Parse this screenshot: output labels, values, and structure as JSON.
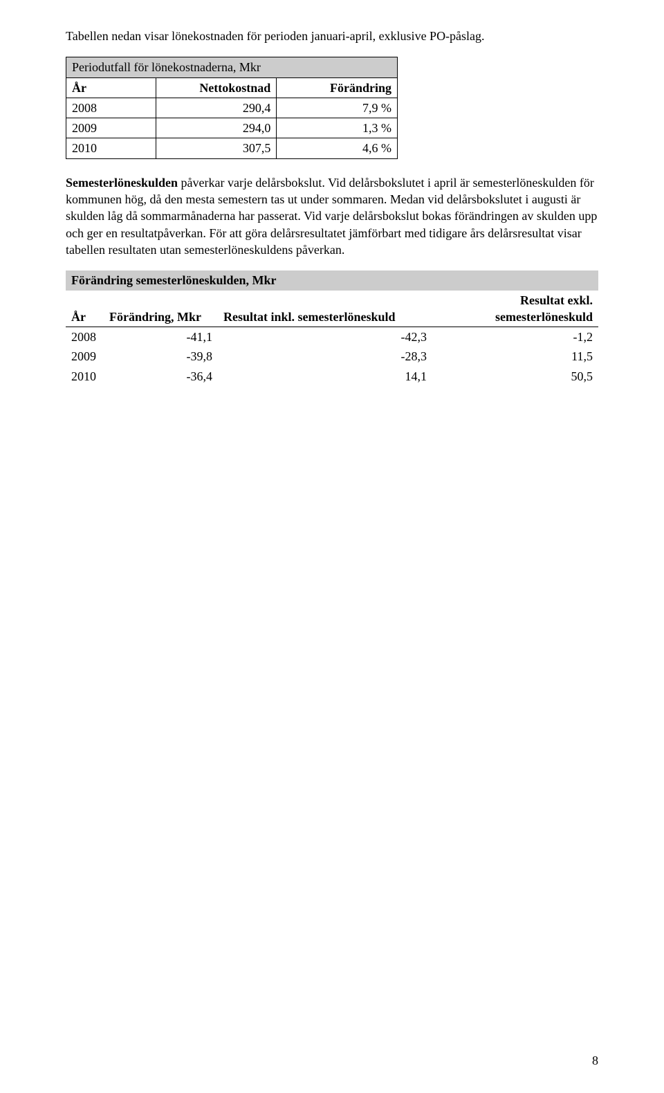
{
  "intro": "Tabellen nedan visar lönekostnaden för perioden januari-april, exklusive PO-påslag.",
  "table1": {
    "title": "Periodutfall för lönekostnaderna, Mkr",
    "col_headers": [
      "År",
      "Nettokostnad",
      "Förändring"
    ],
    "rows": [
      {
        "year": "2008",
        "net": "290,4",
        "chg": "7,9 %"
      },
      {
        "year": "2009",
        "net": "294,0",
        "chg": "1,3 %"
      },
      {
        "year": "2010",
        "net": "307,5",
        "chg": "4,6 %"
      }
    ],
    "header_bg": "#cccccc",
    "border_color": "#000000"
  },
  "para2_bold": "Semesterlöneskulden",
  "para2_rest": " påverkar varje delårsbokslut. Vid delårsbokslutet i april är semesterlöneskulden för kommunen hög, då den mesta semestern tas ut under sommaren. Medan vid delårsbokslutet i augusti är skulden låg då sommarmånaderna har passerat. Vid varje delårsbokslut bokas förändringen av skulden upp och ger en resultatpåverkan. För att göra delårsresultatet jämförbart med tidigare års delårsresultat visar tabellen resultaten utan semesterlöneskuldens påverkan.",
  "table2": {
    "title": "Förändring semesterlöneskulden, Mkr",
    "col_headers": [
      "År",
      "Förändring, Mkr",
      "Resultat inkl. semesterlöneskuld",
      "Resultat exkl. semesterlöneskuld"
    ],
    "rows": [
      {
        "year": "2008",
        "chg": "-41,1",
        "inkl": "-42,3",
        "exkl": "-1,2"
      },
      {
        "year": "2009",
        "chg": "-39,8",
        "inkl": "-28,3",
        "exkl": "11,5"
      },
      {
        "year": "2010",
        "chg": "-36,4",
        "inkl": "14,1",
        "exkl": "50,5"
      }
    ],
    "header_bg": "#cccccc"
  },
  "page_number": "8"
}
